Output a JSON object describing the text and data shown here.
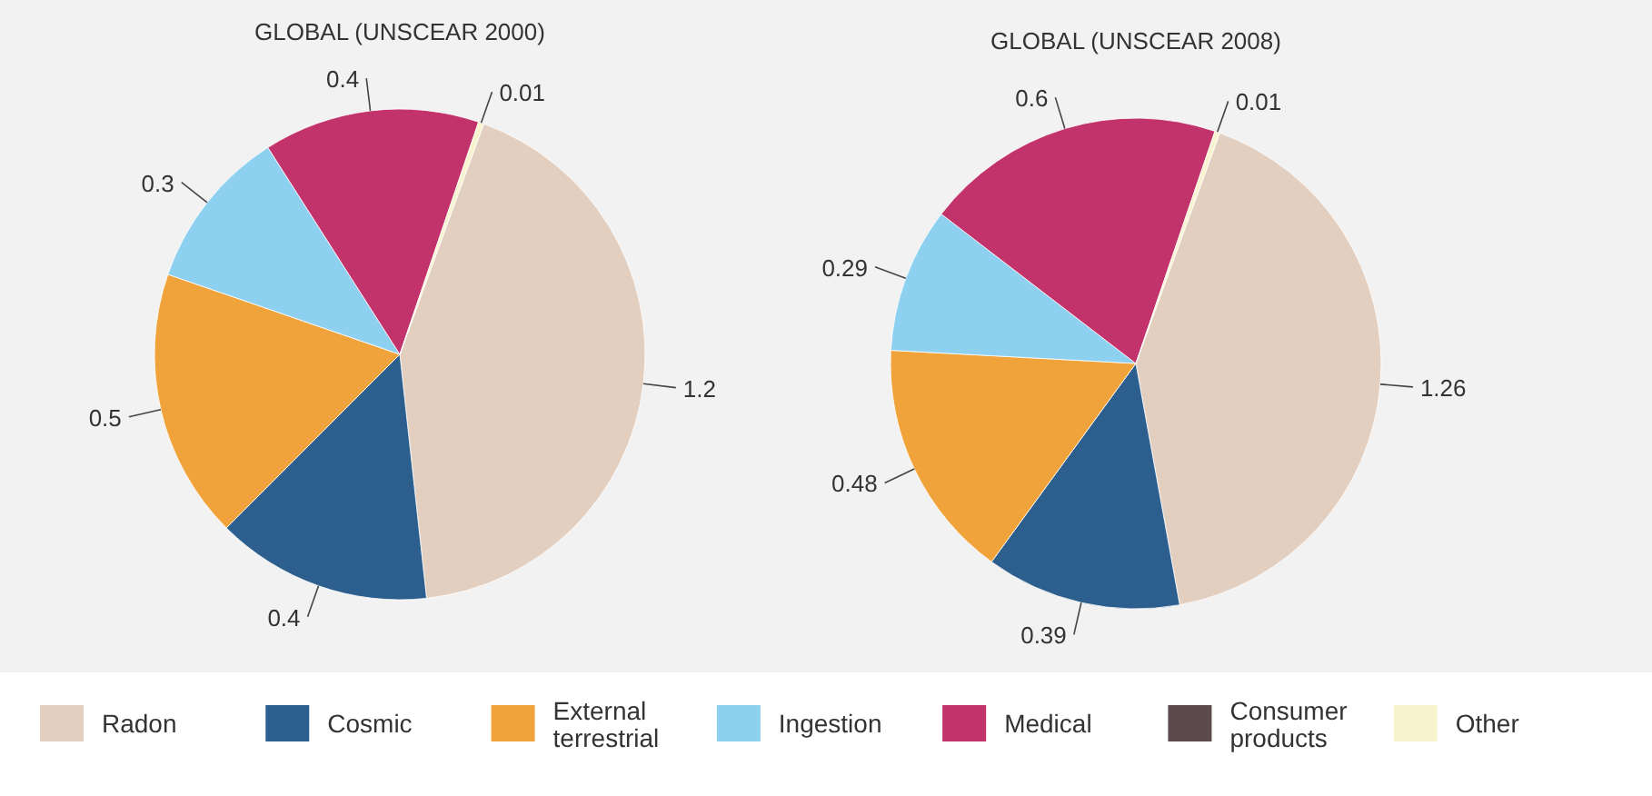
{
  "chart_data": [
    {
      "type": "pie",
      "title": "GLOBAL (UNSCEAR 2000)",
      "categories": [
        "Radon",
        "Cosmic",
        "External terrestrial",
        "Ingestion",
        "Medical",
        "Consumer products",
        "Other"
      ],
      "values": [
        1.2,
        0.4,
        0.5,
        0.3,
        0.4,
        null,
        0.01
      ],
      "colors": [
        "#e3cfc0",
        "#2c5f8e",
        "#f0a33a",
        "#8dd0ef",
        "#c2336b",
        "#5b4b4d",
        "#f8f3cf"
      ],
      "data_labels": true,
      "legend": "bottom"
    },
    {
      "type": "pie",
      "title": "GLOBAL (UNSCEAR 2008)",
      "categories": [
        null,
        null,
        null,
        null,
        null,
        null
      ],
      "values": [
        1.26,
        0.39,
        0.48,
        0.29,
        0.6,
        0.01
      ],
      "colors": [
        "#e3cfc0",
        "#2c5f8e",
        "#f0a33a",
        "#8dd0ef",
        "#c2336b",
        "#f8f3cf"
      ],
      "data_labels": true
    }
  ]
}
